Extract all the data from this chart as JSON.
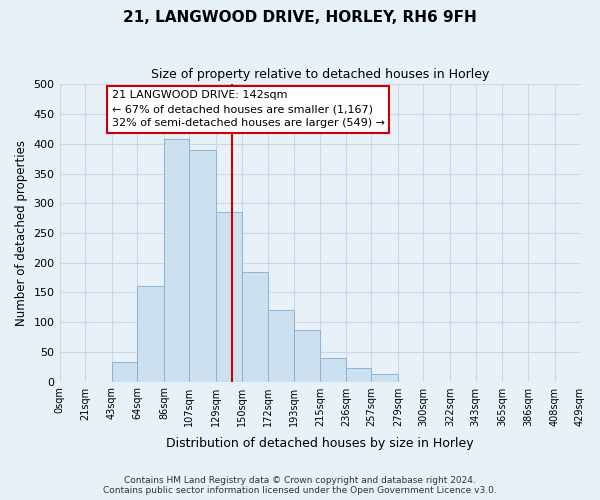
{
  "title": "21, LANGWOOD DRIVE, HORLEY, RH6 9FH",
  "subtitle": "Size of property relative to detached houses in Horley",
  "xlabel": "Distribution of detached houses by size in Horley",
  "ylabel": "Number of detached properties",
  "bin_labels": [
    "0sqm",
    "21sqm",
    "43sqm",
    "64sqm",
    "86sqm",
    "107sqm",
    "129sqm",
    "150sqm",
    "172sqm",
    "193sqm",
    "215sqm",
    "236sqm",
    "257sqm",
    "279sqm",
    "300sqm",
    "322sqm",
    "343sqm",
    "365sqm",
    "386sqm",
    "408sqm",
    "429sqm"
  ],
  "bin_edges": [
    0,
    21,
    43,
    64,
    86,
    107,
    129,
    150,
    172,
    193,
    215,
    236,
    257,
    279,
    300,
    322,
    343,
    365,
    386,
    408,
    429
  ],
  "bar_heights": [
    0,
    0,
    33,
    160,
    408,
    390,
    285,
    184,
    120,
    87,
    40,
    22,
    12,
    0,
    0,
    0,
    0,
    0,
    0,
    0
  ],
  "bar_color": "#cce0f0",
  "bar_edge_color": "#8ab4d4",
  "vline_x": 142,
  "vline_color": "#cc0000",
  "ylim": [
    0,
    500
  ],
  "yticks": [
    0,
    50,
    100,
    150,
    200,
    250,
    300,
    350,
    400,
    450,
    500
  ],
  "annotation_title": "21 LANGWOOD DRIVE: 142sqm",
  "annotation_line1": "← 67% of detached houses are smaller (1,167)",
  "annotation_line2": "32% of semi-detached houses are larger (549) →",
  "annotation_box_color": "#ffffff",
  "annotation_box_edge": "#cc0000",
  "footnote1": "Contains HM Land Registry data © Crown copyright and database right 2024.",
  "footnote2": "Contains public sector information licensed under the Open Government Licence v3.0.",
  "grid_color": "#c8d8e8",
  "background_color": "#e8f0f8"
}
